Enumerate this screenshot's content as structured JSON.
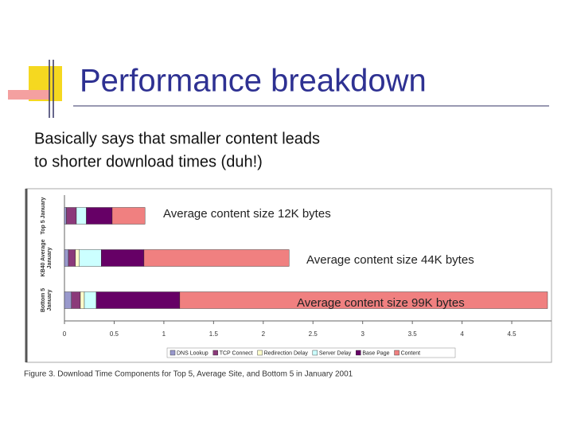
{
  "slide_title": "Performance breakdown",
  "body_text": [
    "Basically says that smaller content leads",
    "to shorter download times (duh!)"
  ],
  "chart_data": {
    "type": "stacked-horizontal-bar",
    "categories": [
      "Top 5 January",
      "KB40 Average January",
      "Bottom 5 January"
    ],
    "series": [
      {
        "name": "DNS Lookup",
        "color": "#9999cc",
        "values": [
          0.02,
          0.04,
          0.07
        ]
      },
      {
        "name": "TCP Connect",
        "color": "#8b3a7a",
        "values": [
          0.1,
          0.07,
          0.09
        ]
      },
      {
        "name": "Redirection Delay",
        "color": "#ffffcc",
        "values": [
          0,
          0.04,
          0.04
        ]
      },
      {
        "name": "Server Delay",
        "color": "#ccffff",
        "values": [
          0.1,
          0.22,
          0.12
        ]
      },
      {
        "name": "Base Page",
        "color": "#660066",
        "values": [
          0.26,
          0.43,
          0.84
        ]
      },
      {
        "name": "Content",
        "color": "#f08080",
        "values": [
          0.33,
          1.46,
          3.7
        ]
      }
    ],
    "xlim": [
      0,
      4.9
    ],
    "xticks": [
      0,
      0.5,
      1,
      1.5,
      2,
      2.5,
      3,
      3.5,
      4,
      4.5
    ],
    "annotations": [
      "Average content size 12K bytes",
      "Average content size 44K bytes",
      "Average content size 99K bytes"
    ],
    "caption": "Figure 3. Download Time Components for Top 5, Average Site, and Bottom 5 in January 2001"
  }
}
